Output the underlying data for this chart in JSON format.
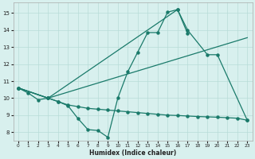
{
  "xlabel": "Humidex (Indice chaleur)",
  "background_color": "#d8f0ee",
  "grid_color": "#b8dcd8",
  "line_color": "#1a7a6a",
  "xlim": [
    -0.5,
    23.5
  ],
  "ylim": [
    7.5,
    15.6
  ],
  "xticks": [
    0,
    1,
    2,
    3,
    4,
    5,
    6,
    7,
    8,
    9,
    10,
    11,
    12,
    13,
    14,
    15,
    16,
    17,
    18,
    19,
    20,
    21,
    22,
    23
  ],
  "yticks": [
    8,
    9,
    10,
    11,
    12,
    13,
    14,
    15
  ],
  "line1_x": [
    0,
    1,
    2,
    3,
    4,
    5,
    6,
    7,
    8,
    9,
    10,
    11,
    12,
    13,
    14,
    15,
    16,
    17
  ],
  "line1_y": [
    10.6,
    10.3,
    9.9,
    10.0,
    9.8,
    9.55,
    8.8,
    8.15,
    8.1,
    7.7,
    10.0,
    11.55,
    12.7,
    13.85,
    13.85,
    15.05,
    15.2,
    13.8
  ],
  "line2_x": [
    0,
    3,
    16,
    17,
    19,
    20,
    23
  ],
  "line2_y": [
    10.6,
    10.0,
    15.2,
    14.0,
    12.55,
    12.55,
    8.7
  ],
  "line3_x": [
    0,
    3,
    23
  ],
  "line3_y": [
    10.6,
    10.0,
    13.55
  ],
  "line4_x": [
    0,
    3,
    4,
    5,
    6,
    7,
    8,
    9,
    10,
    11,
    12,
    13,
    14,
    15,
    16,
    17,
    18,
    19,
    20,
    21,
    22,
    23
  ],
  "line4_y": [
    10.6,
    10.0,
    9.8,
    9.6,
    9.5,
    9.4,
    9.35,
    9.3,
    9.25,
    9.2,
    9.15,
    9.1,
    9.05,
    9.0,
    8.98,
    8.95,
    8.92,
    8.9,
    8.88,
    8.85,
    8.82,
    8.7
  ]
}
